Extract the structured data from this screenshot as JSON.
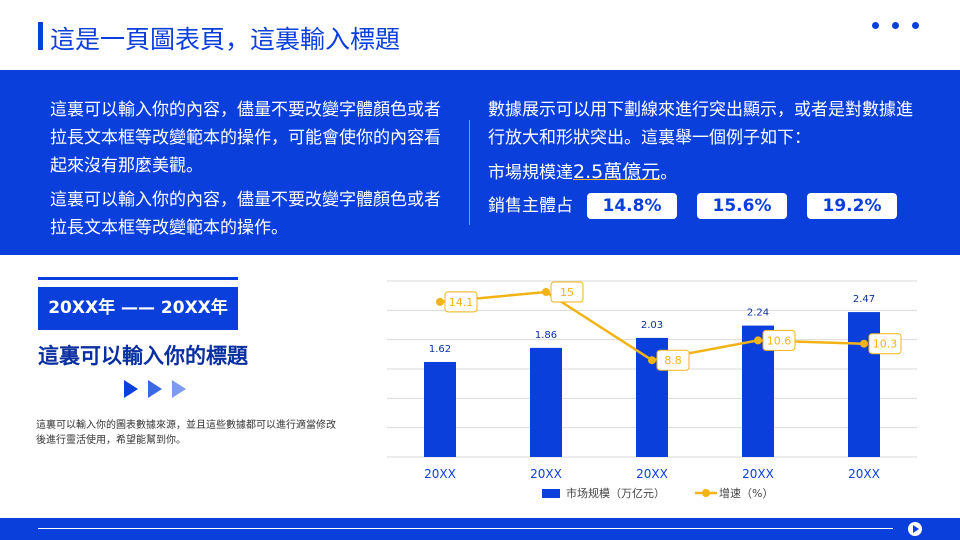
{
  "header": {
    "title": "這是一頁圖表頁，這裏輸入標題"
  },
  "intro": {
    "left": [
      "這裏可以輸入你的內容，儘量不要改變字體顏色或者拉長文本框等改變範本的操作，可能會使你的內容看起來沒有那麼美觀。",
      "這裏可以輸入你的內容，儘量不要改變字體顏色或者拉長文本框等改變範本的操作。"
    ],
    "right": {
      "text": "數據展示可以用下劃線來進行突出顯示，或者是對數據進行放大和形狀突出。這裏舉一個例子如下：",
      "highlight_prefix": "市場規模達",
      "highlight": "2.5萬億元",
      "highlight_suffix": "。",
      "share_label": "銷售主體占",
      "shares": [
        "14.8%",
        "15.6%",
        "19.2%"
      ]
    }
  },
  "side": {
    "period": "20XX年 —— 20XX年",
    "heading": "這裏可以輸入你的標題",
    "note": "這裏可以輸入你的圖表數據來源，並且這些數據都可以進行適當修改後進行靈活使用，希望能幫到你。"
  },
  "chart_data": {
    "type": "bar_line",
    "categories": [
      "20XX",
      "20XX",
      "20XX",
      "20XX",
      "20XX"
    ],
    "series": [
      {
        "name": "市场规模（万亿元）",
        "color": "#0a3fdc",
        "values": [
          1.62,
          1.86,
          2.03,
          2.24,
          2.47
        ]
      },
      {
        "name": "增速（%）",
        "color": "#f2b316",
        "axis": "y2",
        "values": [
          14.1,
          15,
          8.8,
          10.6,
          10.3
        ]
      }
    ],
    "ylim": [
      0,
      3
    ],
    "y2lim": [
      0,
      16
    ],
    "grid": true
  }
}
